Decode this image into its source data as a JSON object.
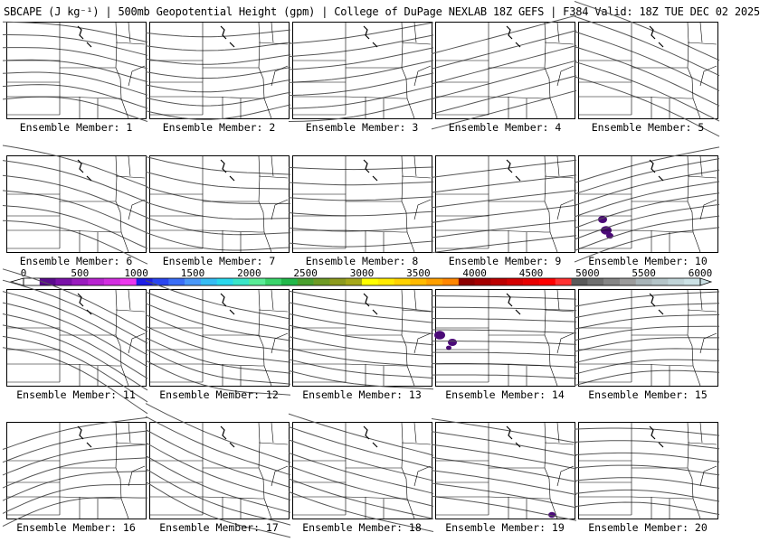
{
  "title": "SBCAPE (J kg⁻¹) | 500mb Geopotential Height (gpm) | College of DuPage NEXLAB 18Z GEFS | F384 Valid: 18Z TUE DEC 02 2025",
  "colorbar": {
    "ticks": [
      "0",
      "500",
      "1000",
      "1500",
      "2000",
      "2500",
      "3000",
      "3500",
      "4000",
      "4500",
      "5000",
      "5500",
      "6000"
    ],
    "colors": [
      "#ffffff",
      "#5a0a8c",
      "#7a12a8",
      "#9a1cbe",
      "#b824d0",
      "#d22ee0",
      "#ec38ee",
      "#1e1ee6",
      "#2a46f0",
      "#3a6ef6",
      "#4a98f8",
      "#36bcf4",
      "#2ad8ec",
      "#3ae6c8",
      "#5aec96",
      "#3ad46a",
      "#22b84a",
      "#4aa02e",
      "#6e9a24",
      "#8c9a1e",
      "#a6a81a",
      "#ffff00",
      "#ffea00",
      "#ffd200",
      "#ffba00",
      "#ffa000",
      "#ff8600",
      "#8c0000",
      "#a40000",
      "#bc0000",
      "#d40000",
      "#e80000",
      "#ff0000",
      "#ff3232",
      "#5a5a5a",
      "#707070",
      "#868686",
      "#9c9c9c",
      "#a8b4b8",
      "#b4c4c8",
      "#c0d4d8",
      "#cce2e6"
    ]
  },
  "panels": [
    {
      "label": "Ensemble Member: 1"
    },
    {
      "label": "Ensemble Member: 2"
    },
    {
      "label": "Ensemble Member: 3"
    },
    {
      "label": "Ensemble Member: 4"
    },
    {
      "label": "Ensemble Member: 5"
    },
    {
      "label": "Ensemble Member: 6"
    },
    {
      "label": "Ensemble Member: 7"
    },
    {
      "label": "Ensemble Member: 8"
    },
    {
      "label": "Ensemble Member: 9"
    },
    {
      "label": "Ensemble Member: 10"
    },
    {
      "label": "Ensemble Member: 11"
    },
    {
      "label": "Ensemble Member: 12"
    },
    {
      "label": "Ensemble Member: 13"
    },
    {
      "label": "Ensemble Member: 14"
    },
    {
      "label": "Ensemble Member: 15"
    },
    {
      "label": "Ensemble Member: 16"
    },
    {
      "label": "Ensemble Member: 17"
    },
    {
      "label": "Ensemble Member: 18"
    },
    {
      "label": "Ensemble Member: 19"
    },
    {
      "label": "Ensemble Member: 20"
    }
  ],
  "colors": {
    "contour": "#555555",
    "border": "#000000",
    "cape": "#4b0a78"
  }
}
